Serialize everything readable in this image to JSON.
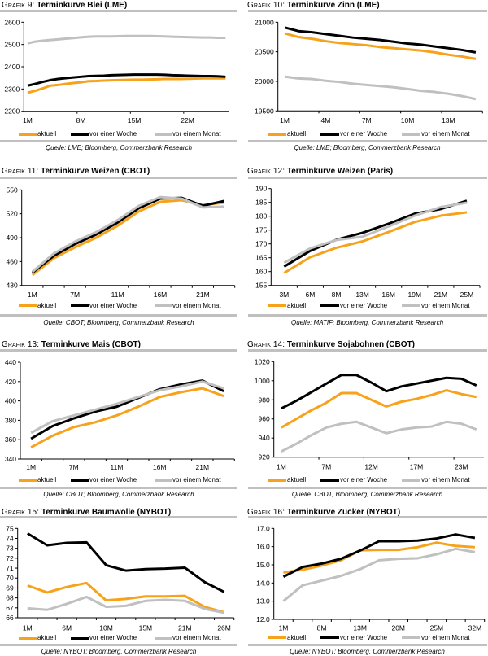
{
  "chart_data": [
    {
      "type": "line",
      "figure_label": "Grafik 9:",
      "title": "Terminkurve Blei (LME)",
      "xlabel": "",
      "ylabel": "",
      "categories": [
        "1M",
        "",
        "",
        "",
        "",
        "",
        "",
        "8M",
        "",
        "",
        "",
        "",
        "",
        "",
        "15M",
        "",
        "",
        "",
        "",
        "",
        "",
        "22M",
        "",
        "",
        "",
        "",
        ""
      ],
      "y_tick_labels": [
        "2200",
        "2300",
        "2400",
        "2500",
        "2600"
      ],
      "ylim": [
        2200,
        2600
      ],
      "grid": false,
      "legend": "bottom",
      "series": [
        {
          "name": "aktuell",
          "color": "#f7a21b",
          "values": [
            2283,
            2292,
            2303,
            2315,
            2318,
            2323,
            2327,
            2330,
            2335,
            2336,
            2338,
            2339,
            2340,
            2341,
            2342,
            2342,
            2343,
            2344,
            2345,
            2345,
            2345,
            2346,
            2347,
            2348,
            2348,
            2348,
            2348
          ]
        },
        {
          "name": "vor einer Woche",
          "color": "#000000",
          "values": [
            2315,
            2323,
            2332,
            2340,
            2345,
            2349,
            2352,
            2355,
            2358,
            2359,
            2360,
            2362,
            2363,
            2364,
            2365,
            2365,
            2365,
            2365,
            2364,
            2362,
            2361,
            2360,
            2359,
            2358,
            2358,
            2357,
            2355
          ]
        },
        {
          "name": "vor einem Monat",
          "color": "#c0c0c0",
          "values": [
            2505,
            2513,
            2517,
            2520,
            2523,
            2526,
            2529,
            2532,
            2535,
            2536,
            2536,
            2536,
            2537,
            2538,
            2538,
            2538,
            2538,
            2537,
            2536,
            2535,
            2534,
            2533,
            2532,
            2531,
            2531,
            2530,
            2530
          ]
        }
      ],
      "source": "Quelle: LME; Bloomberg, Commerzbank Research"
    },
    {
      "type": "line",
      "figure_label": "Grafik 10:",
      "title": "Terminkurve Zinn (LME)",
      "xlabel": "",
      "ylabel": "",
      "categories": [
        "1M",
        "",
        "",
        "4M",
        "",
        "",
        "7M",
        "",
        "",
        "10M",
        "",
        "",
        "13M",
        "",
        ""
      ],
      "y_tick_labels": [
        "19500",
        "20000",
        "20500",
        "21000"
      ],
      "ylim": [
        19500,
        21000
      ],
      "grid": false,
      "legend": "bottom",
      "series": [
        {
          "name": "aktuell",
          "color": "#f7a21b",
          "values": [
            20810,
            20750,
            20720,
            20680,
            20650,
            20630,
            20610,
            20580,
            20560,
            20540,
            20520,
            20490,
            20450,
            20420,
            20380
          ]
        },
        {
          "name": "vor einer Woche",
          "color": "#000000",
          "values": [
            20910,
            20850,
            20830,
            20800,
            20770,
            20740,
            20720,
            20700,
            20670,
            20640,
            20620,
            20590,
            20560,
            20530,
            20490
          ]
        },
        {
          "name": "vor einem Monat",
          "color": "#c0c0c0",
          "values": [
            20080,
            20050,
            20040,
            20010,
            19990,
            19960,
            19940,
            19920,
            19900,
            19870,
            19840,
            19820,
            19790,
            19750,
            19700
          ]
        }
      ],
      "source": "Quelle: LME; Bloomberg, Commerzbank Research"
    },
    {
      "type": "line",
      "figure_label": "Grafik 11:",
      "title": "Terminkurve Weizen (CBOT)",
      "xlabel": "",
      "ylabel": "",
      "categories": [
        "1M",
        "",
        "7M",
        "",
        "11M",
        "",
        "16M",
        "",
        "21M",
        ""
      ],
      "y_tick_labels": [
        "430",
        "460",
        "490",
        "520",
        "550"
      ],
      "ylim": [
        430,
        550
      ],
      "grid": false,
      "legend": "bottom",
      "series": [
        {
          "name": "aktuell",
          "color": "#f7a21b",
          "values": [
            443,
            464,
            478,
            490,
            505,
            523,
            535,
            537,
            531,
            534
          ]
        },
        {
          "name": "vor einer Woche",
          "color": "#000000",
          "values": [
            446,
            467,
            482,
            494,
            509,
            527,
            539,
            540,
            530,
            536
          ]
        },
        {
          "name": "vor einem Monat",
          "color": "#c0c0c0",
          "values": [
            447,
            470,
            485,
            497,
            512,
            530,
            541,
            539,
            528,
            529
          ]
        }
      ],
      "source": "Quelle: CBOT; Bloomberg, Commerzbank Research"
    },
    {
      "type": "line",
      "figure_label": "Grafik 12:",
      "title": "Terminkurve Weizen (Paris)",
      "xlabel": "",
      "ylabel": "",
      "categories": [
        "3M",
        "6M",
        "8M",
        "13M",
        "16M",
        "19M",
        "21M",
        "25M"
      ],
      "y_tick_labels": [
        "155",
        "160",
        "165",
        "170",
        "175",
        "180",
        "185",
        "190"
      ],
      "ylim": [
        155,
        190
      ],
      "grid": false,
      "legend": "bottom",
      "series": [
        {
          "name": "aktuell",
          "color": "#f7a21b",
          "values": [
            159.5,
            165.2,
            168.6,
            170.9,
            174.3,
            177.9,
            180.2,
            181.4
          ]
        },
        {
          "name": "vor einer Woche",
          "color": "#000000",
          "values": [
            161.8,
            167.5,
            171.5,
            174.0,
            177.3,
            180.9,
            182.6,
            185.6
          ]
        },
        {
          "name": "vor einem Monat",
          "color": "#c0c0c0",
          "values": [
            163.2,
            168.4,
            171.4,
            172.6,
            176.3,
            180.2,
            183.3,
            184.9
          ]
        }
      ],
      "source": "Quelle: MATIF; Bloomberg, Commerzbank Research"
    },
    {
      "type": "line",
      "figure_label": "Grafik 13:",
      "title": "Terminkurve Mais (CBOT)",
      "xlabel": "",
      "ylabel": "",
      "categories": [
        "1M",
        "",
        "7M",
        "",
        "11M",
        "",
        "16M",
        "",
        "21M",
        ""
      ],
      "y_tick_labels": [
        "340",
        "360",
        "380",
        "400",
        "420",
        "440"
      ],
      "ylim": [
        340,
        440
      ],
      "grid": false,
      "legend": "bottom",
      "series": [
        {
          "name": "aktuell",
          "color": "#f7a21b",
          "values": [
            352,
            364,
            373,
            378,
            385,
            394,
            404,
            409,
            413,
            405
          ]
        },
        {
          "name": "vor einer Woche",
          "color": "#000000",
          "values": [
            361,
            374,
            382,
            389,
            394,
            403,
            412,
            417,
            421,
            410
          ]
        },
        {
          "name": "vor einem Monat",
          "color": "#c0c0c0",
          "values": [
            367,
            379,
            385,
            391,
            397,
            404,
            411,
            415,
            420,
            413
          ]
        }
      ],
      "source": "Quelle: CBOT; Bloomberg, Commerzbank Research"
    },
    {
      "type": "line",
      "figure_label": "Grafik 14:",
      "title": "Terminkurve Sojabohnen (CBOT)",
      "xlabel": "",
      "ylabel": "",
      "categories": [
        "1M",
        "",
        "",
        "7M",
        "",
        "",
        "12M",
        "",
        "",
        "17M",
        "",
        "",
        "23M",
        ""
      ],
      "y_tick_labels": [
        "920",
        "940",
        "960",
        "980",
        "1000",
        "1020"
      ],
      "ylim": [
        920,
        1020
      ],
      "grid": false,
      "legend": "bottom",
      "series": [
        {
          "name": "aktuell",
          "color": "#f7a21b",
          "values": [
            951,
            960,
            969,
            977,
            987,
            987,
            980,
            973,
            978,
            981,
            985,
            990,
            986,
            983
          ]
        },
        {
          "name": "vor einer Woche",
          "color": "#000000",
          "values": [
            971,
            979,
            988,
            997,
            1006,
            1006,
            998,
            989,
            994,
            997,
            1000,
            1003,
            1002,
            995
          ]
        },
        {
          "name": "vor einem Monat",
          "color": "#c0c0c0",
          "values": [
            926,
            934,
            943,
            951,
            955,
            957,
            951,
            945,
            949,
            951,
            952,
            957,
            955,
            949
          ]
        }
      ],
      "source": "Quelle: CBOT; Bloomberg, Commerzbank Research"
    },
    {
      "type": "line",
      "figure_label": "Grafik 15:",
      "title": "Terminkurve Baumwolle (NYBOT)",
      "xlabel": "",
      "ylabel": "",
      "categories": [
        "1M",
        "",
        "6M",
        "",
        "10M",
        "",
        "15M",
        "",
        "21M",
        "",
        "26M"
      ],
      "y_tick_labels": [
        "66",
        "67",
        "68",
        "69",
        "70",
        "71",
        "72",
        "73",
        "74",
        "75"
      ],
      "ylim": [
        66,
        75
      ],
      "grid": false,
      "legend": "bottom",
      "series": [
        {
          "name": "aktuell",
          "color": "#f7a21b",
          "values": [
            69.25,
            68.55,
            69.1,
            69.5,
            67.75,
            67.9,
            68.15,
            68.15,
            68.2,
            67.1,
            66.55
          ]
        },
        {
          "name": "vor einer Woche",
          "color": "#000000",
          "values": [
            74.5,
            73.3,
            73.55,
            73.6,
            71.3,
            70.75,
            70.9,
            70.95,
            71.05,
            69.6,
            68.6
          ]
        },
        {
          "name": "vor einem Monat",
          "color": "#c0c0c0",
          "values": [
            66.95,
            66.8,
            67.4,
            68.1,
            67.1,
            67.2,
            67.7,
            67.8,
            67.7,
            66.9,
            66.5
          ]
        }
      ],
      "source": "Quelle: NYBOT; Bloomberg, Commerzbank Research"
    },
    {
      "type": "line",
      "figure_label": "Grafik 16:",
      "title": "Terminkurve Zucker (NYBOT)",
      "xlabel": "",
      "ylabel": "",
      "categories": [
        "1M",
        "",
        "8M",
        "",
        "13M",
        "",
        "20M",
        "",
        "25M",
        "",
        "32M"
      ],
      "y_tick_labels": [
        "12.0",
        "13.0",
        "14.0",
        "15.0",
        "16.0",
        "17.0"
      ],
      "ylim": [
        12.0,
        17.0
      ],
      "grid": false,
      "legend": "bottom",
      "series": [
        {
          "name": "aktuell",
          "color": "#f7a21b",
          "values": [
            14.58,
            14.73,
            14.96,
            15.25,
            15.8,
            15.82,
            15.82,
            15.97,
            16.22,
            16.04,
            15.97
          ]
        },
        {
          "name": "vor einer Woche",
          "color": "#000000",
          "values": [
            14.34,
            14.88,
            15.07,
            15.33,
            15.78,
            16.3,
            16.3,
            16.33,
            16.45,
            16.67,
            16.48
          ]
        },
        {
          "name": "vor einem Monat",
          "color": "#c0c0c0",
          "values": [
            13.01,
            13.87,
            14.13,
            14.39,
            14.76,
            15.25,
            15.33,
            15.36,
            15.58,
            15.88,
            15.7
          ]
        }
      ],
      "source": "Quelle: NYBOT; Bloomberg, Commerzbank Research"
    }
  ]
}
